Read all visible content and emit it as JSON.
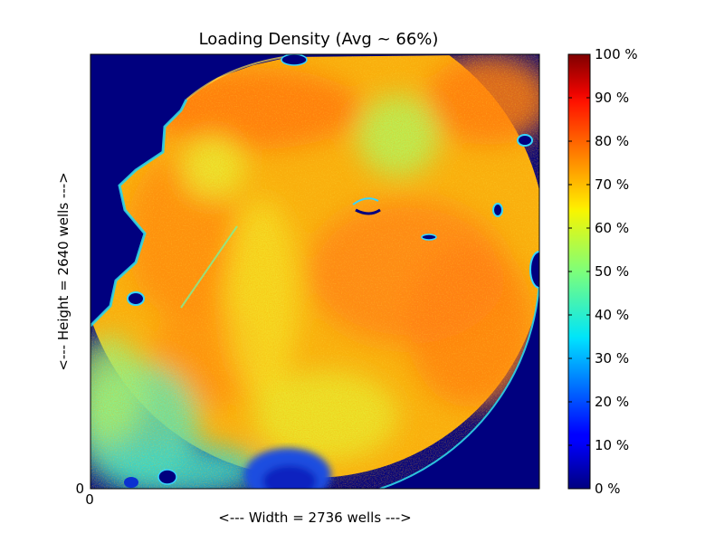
{
  "chart_data": {
    "type": "heatmap",
    "title": "Loading Density (Avg ~ 66%)",
    "xlabel": "<--- Width = 2736 wells --->",
    "ylabel": "<--- Height = 2640 wells --->",
    "x_tick_labels": [
      "0"
    ],
    "y_tick_labels": [
      "0"
    ],
    "xlim": [
      0,
      2736
    ],
    "ylim": [
      0,
      2640
    ],
    "colorbar": {
      "colormap": "jet",
      "range": [
        0,
        100
      ],
      "unit": "%",
      "ticks": [
        0,
        10,
        20,
        30,
        40,
        50,
        60,
        70,
        80,
        90,
        100
      ],
      "tick_labels": [
        "0 %",
        "10 %",
        "20 %",
        "30 %",
        "40 %",
        "50 %",
        "60 %",
        "70 %",
        "80 %",
        "90 %",
        "100 %"
      ]
    },
    "average_percent": 66,
    "background_value_percent": 0,
    "typical_range_percent": [
      50,
      85
    ]
  }
}
